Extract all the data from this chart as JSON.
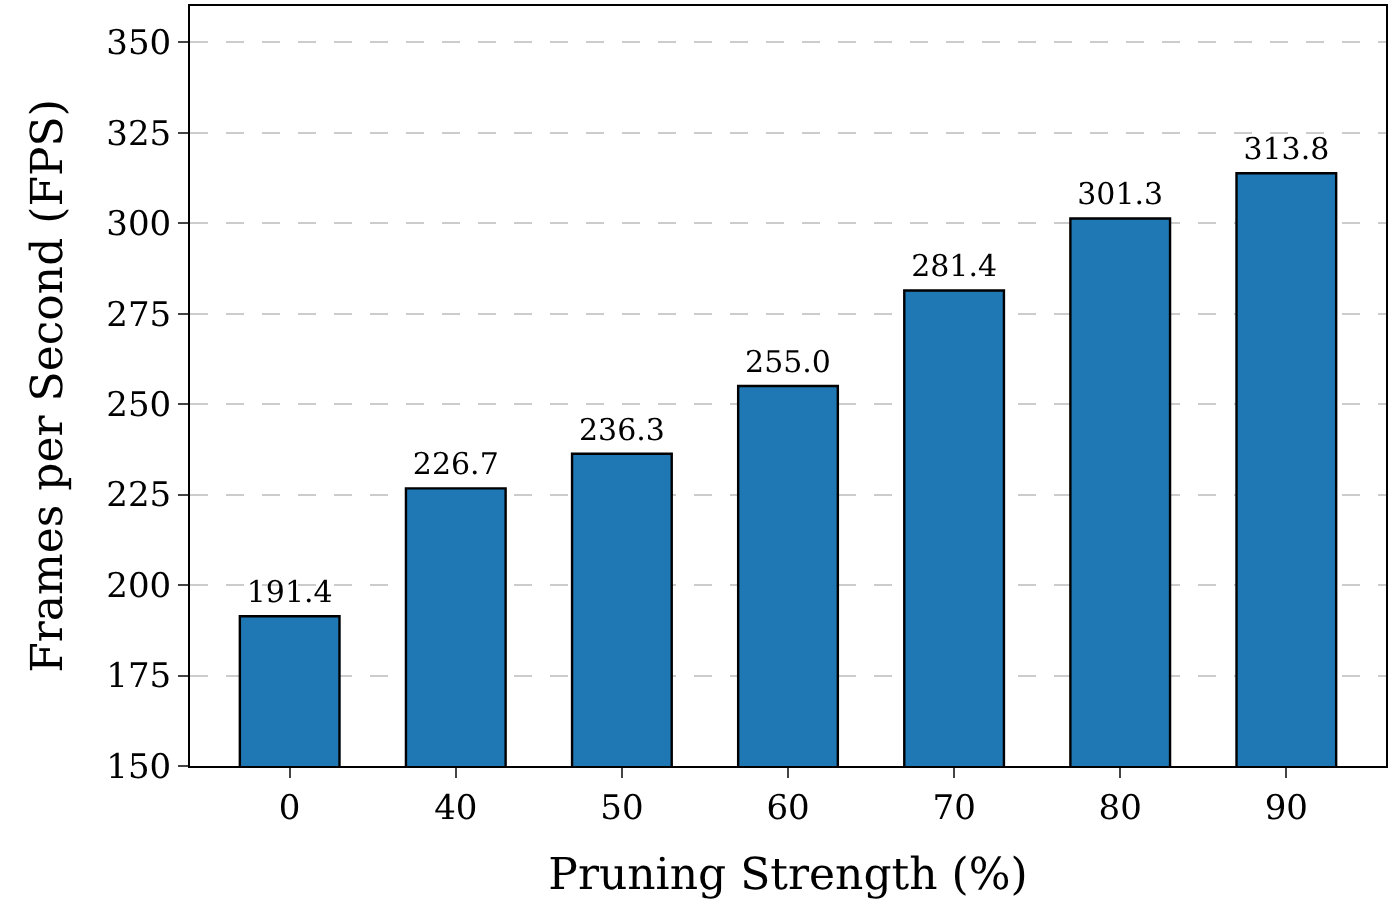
{
  "chart_data": {
    "type": "bar",
    "xlabel": "Pruning Strength (%)",
    "ylabel": "Frames per Second (FPS)",
    "categories": [
      "0",
      "40",
      "50",
      "60",
      "70",
      "80",
      "90"
    ],
    "values": [
      191.4,
      226.7,
      236.3,
      255.0,
      281.4,
      301.3,
      313.8
    ],
    "value_labels": [
      "191.4",
      "226.7",
      "236.3",
      "255.0",
      "281.4",
      "301.3",
      "313.8"
    ],
    "color": "#1f77b4",
    "ylim": [
      150,
      360
    ],
    "yticks": [
      150,
      175,
      200,
      225,
      250,
      275,
      300,
      325,
      350
    ],
    "grid": "y"
  }
}
